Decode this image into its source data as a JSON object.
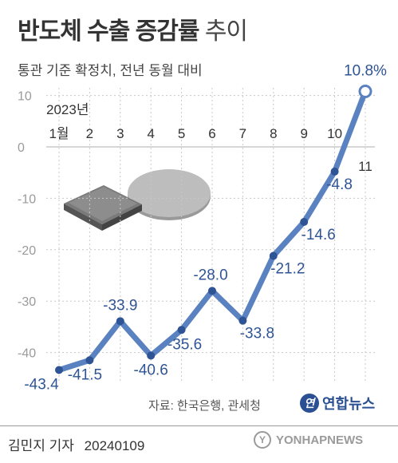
{
  "header": {
    "title_bold": "반도체 수출 증감률",
    "title_light": "추이",
    "subtitle": "통관 기준 확정치, 전년 동월 대비"
  },
  "chart_data": {
    "type": "line",
    "title": "반도체 수출 증감률 추이",
    "subtitle": "통관 기준 확정치, 전년 동월 대비",
    "year_label": "2023년",
    "categories": [
      "1월",
      "2",
      "3",
      "4",
      "5",
      "6",
      "7",
      "8",
      "9",
      "10",
      "11"
    ],
    "series": [
      {
        "values": [
          -43.4,
          -41.5,
          -33.9,
          -40.6,
          -35.6,
          -28.0,
          -33.8,
          -21.2,
          -14.6,
          -4.8,
          10.8
        ]
      }
    ],
    "data_labels": [
      "-43.4",
      "-41.5",
      "-33.9",
      "-40.6",
      "-35.6",
      "-28.0",
      "-33.8",
      "-21.2",
      "-14.6",
      "-4.8",
      "10.8%"
    ],
    "y_ticks": [
      10,
      0,
      -10,
      -20,
      -30,
      -40
    ],
    "y_tick_labels": [
      "10",
      "0",
      "-10",
      "-20",
      "-30",
      "-40"
    ],
    "ylim": [
      -46,
      12
    ],
    "grid": true,
    "colors": {
      "line": "#5b82c0",
      "label": "#2f5496",
      "grid": "#c8c8c8",
      "axis_text": "#9a9a9a"
    }
  },
  "source": "자료: 한국은행, 관세청",
  "logo": {
    "mark": "연",
    "text": "연합뉴스"
  },
  "footer": {
    "reporter": "김민지 기자",
    "date": "20240109"
  },
  "watermark": {
    "mark": "Y",
    "text": "YONHAPNEWS"
  }
}
